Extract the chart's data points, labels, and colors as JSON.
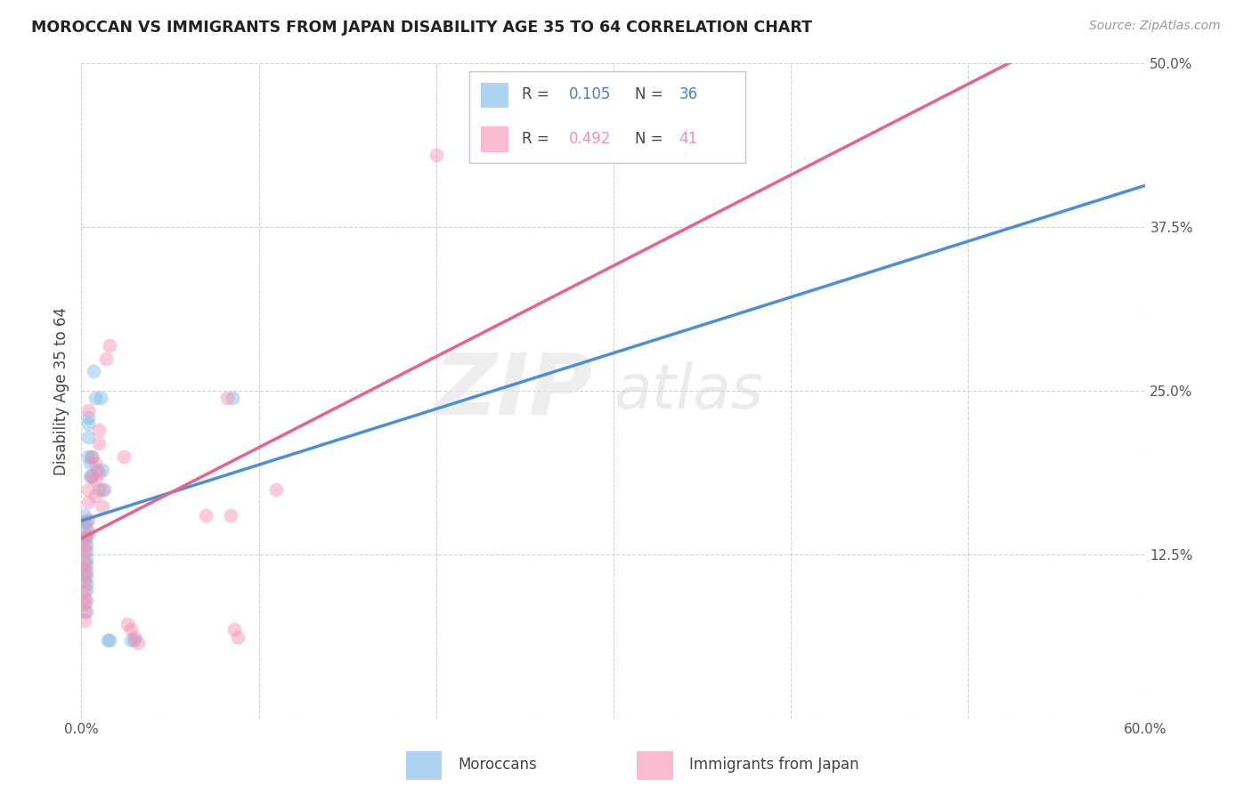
{
  "title": "MOROCCAN VS IMMIGRANTS FROM JAPAN DISABILITY AGE 35 TO 64 CORRELATION CHART",
  "source": "Source: ZipAtlas.com",
  "ylabel_label": "Disability Age 35 to 64",
  "xlim": [
    0.0,
    0.6
  ],
  "ylim": [
    0.0,
    0.5
  ],
  "xticks": [
    0.0,
    0.1,
    0.2,
    0.3,
    0.4,
    0.5,
    0.6
  ],
  "yticks": [
    0.0,
    0.125,
    0.25,
    0.375,
    0.5
  ],
  "xticklabels": [
    "0.0%",
    "",
    "",
    "",
    "",
    "",
    "60.0%"
  ],
  "yticklabels": [
    "",
    "12.5%",
    "25.0%",
    "37.5%",
    "50.0%"
  ],
  "moroccan_x": [
    0.002,
    0.002,
    0.003,
    0.003,
    0.003,
    0.003,
    0.003,
    0.003,
    0.003,
    0.003,
    0.003,
    0.003,
    0.003,
    0.003,
    0.003,
    0.003,
    0.004,
    0.004,
    0.004,
    0.004,
    0.005,
    0.005,
    0.006,
    0.006,
    0.007,
    0.008,
    0.009,
    0.01,
    0.011,
    0.012,
    0.013,
    0.015,
    0.016,
    0.028,
    0.03,
    0.085
  ],
  "moroccan_y": [
    0.155,
    0.15,
    0.15,
    0.145,
    0.14,
    0.138,
    0.133,
    0.128,
    0.122,
    0.118,
    0.112,
    0.108,
    0.103,
    0.098,
    0.09,
    0.082,
    0.23,
    0.225,
    0.215,
    0.2,
    0.195,
    0.185,
    0.2,
    0.185,
    0.265,
    0.245,
    0.19,
    0.175,
    0.245,
    0.19,
    0.175,
    0.06,
    0.06,
    0.06,
    0.06,
    0.245
  ],
  "japan_x": [
    0.002,
    0.002,
    0.002,
    0.002,
    0.002,
    0.002,
    0.002,
    0.002,
    0.002,
    0.002,
    0.002,
    0.002,
    0.004,
    0.004,
    0.004,
    0.004,
    0.004,
    0.006,
    0.006,
    0.008,
    0.008,
    0.008,
    0.01,
    0.01,
    0.01,
    0.012,
    0.012,
    0.014,
    0.016,
    0.024,
    0.026,
    0.028,
    0.03,
    0.032,
    0.07,
    0.082,
    0.084,
    0.086,
    0.088,
    0.2,
    0.11
  ],
  "japan_y": [
    0.138,
    0.132,
    0.128,
    0.12,
    0.115,
    0.11,
    0.105,
    0.098,
    0.092,
    0.088,
    0.082,
    0.075,
    0.235,
    0.175,
    0.165,
    0.152,
    0.142,
    0.2,
    0.185,
    0.195,
    0.182,
    0.17,
    0.22,
    0.21,
    0.188,
    0.175,
    0.162,
    0.275,
    0.285,
    0.2,
    0.072,
    0.068,
    0.062,
    0.058,
    0.155,
    0.245,
    0.155,
    0.068,
    0.062,
    0.43,
    0.175
  ],
  "moroccan_color": "#7ab8e8",
  "japan_color": "#f78db0",
  "moroccan_line_color": "#4a90d9",
  "japan_line_color": "#e8628a",
  "background_color": "#ffffff",
  "grid_color": "#cccccc",
  "watermark_zip": "ZIP",
  "watermark_atlas": "atlas",
  "marker_size": 130,
  "marker_alpha": 0.45,
  "legend_r_color": "#4a7fc1",
  "legend_n_color": "#4a7fc1"
}
